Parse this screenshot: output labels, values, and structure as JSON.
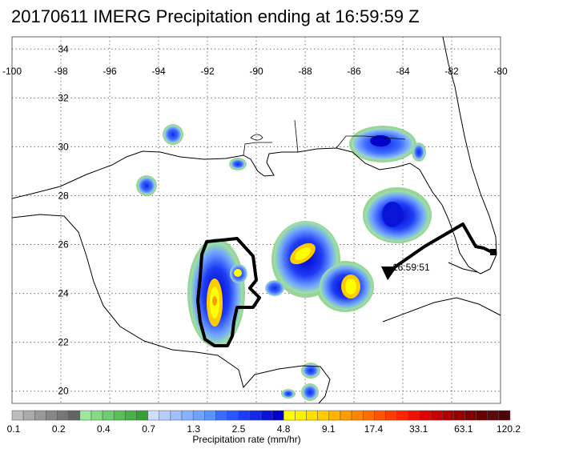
{
  "title": "20170611 IMERG Precipitation ending at 16:59:59 Z",
  "map": {
    "lon_range": [
      -100,
      -80
    ],
    "lat_range": [
      19.5,
      34.5
    ],
    "lon_ticks": [
      "-100",
      "-98",
      "-96",
      "-94",
      "-92",
      "-90",
      "-88",
      "-86",
      "-84",
      "-82",
      "-80"
    ],
    "lat_ticks": [
      "20",
      "22",
      "24",
      "26",
      "28",
      "30",
      "32",
      "34"
    ],
    "gridlines": "dotted",
    "track_label": "16:59:51"
  },
  "colorbar": {
    "title": "Precipitation rate (mm/hr)",
    "labels": [
      "0.1",
      "0.2",
      "0.4",
      "0.7",
      "1.3",
      "2.5",
      "4.8",
      "9.1",
      "17.4",
      "33.1",
      "63.1",
      "120.2"
    ],
    "colors": [
      "#bdbdbd",
      "#ababab",
      "#999999",
      "#878787",
      "#767676",
      "#646464",
      "#9fe69f",
      "#86d986",
      "#6dcc6d",
      "#59bf59",
      "#48b048",
      "#389f38",
      "#cfdcff",
      "#b5cdff",
      "#9ec0ff",
      "#87b2ff",
      "#70a3ff",
      "#5a94ff",
      "#3a6bff",
      "#2a55ff",
      "#1e3cf5",
      "#1428e8",
      "#0a14d8",
      "#0000c8",
      "#ffff00",
      "#fff000",
      "#ffdf00",
      "#ffcc00",
      "#ffb400",
      "#ff9c00",
      "#ff8400",
      "#ff6c00",
      "#ff5400",
      "#ff3c00",
      "#ff2400",
      "#f01000",
      "#e00000",
      "#c80000",
      "#b00000",
      "#980000",
      "#800000",
      "#680000",
      "#5a0a0a",
      "#4a0606"
    ]
  }
}
